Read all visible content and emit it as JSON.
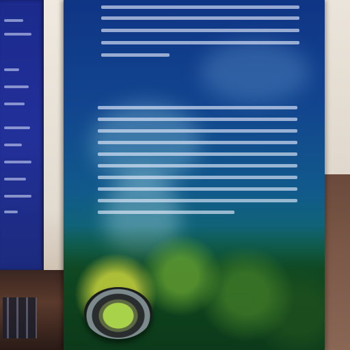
{
  "scene": {
    "description_kind": "photo",
    "heading_text": "",
    "colors": {
      "board_top": "#0f3585",
      "board_bottom": "#0c3a1e",
      "heading": "#ffe082",
      "left_board": "#1b2a8c",
      "wall": "#e8e1d6"
    }
  }
}
